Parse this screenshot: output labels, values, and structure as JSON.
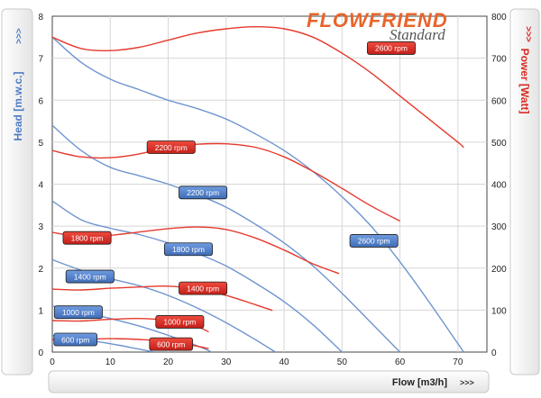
{
  "header": {
    "brand_main": "FLOWFRIEND",
    "brand_sub": "Standard"
  },
  "left_tab": {
    "label": "Head [m.w.c.]",
    "arrows": ">>>"
  },
  "right_tab": {
    "label": "Power [Watt]",
    "arrows": ">>>"
  },
  "bottom_tab": {
    "label": "Flow [m3/h]",
    "arrows": ">>>"
  },
  "colors": {
    "head": "#6f95cf",
    "power": "#e5392d",
    "label_head_bg": "#4f7cc4",
    "label_power_bg": "#d82b22"
  },
  "chart_data": {
    "type": "line",
    "xlabel": "Flow [m3/h]",
    "ylabel": "Head [m.w.c.]",
    "y2label": "Power [Watt]",
    "xlim": [
      0,
      75
    ],
    "ylim": [
      0,
      8
    ],
    "y2lim": [
      0,
      800
    ],
    "x_ticks": [
      0,
      10,
      20,
      30,
      40,
      50,
      60,
      70
    ],
    "y_ticks": [
      0,
      1,
      2,
      3,
      4,
      5,
      6,
      7,
      8
    ],
    "y2_ticks": [
      0,
      100,
      200,
      300,
      400,
      500,
      600,
      700,
      800
    ],
    "grid": true,
    "head_curves": [
      {
        "label": "600 rpm",
        "x": [
          0,
          5,
          10,
          15,
          17.5
        ],
        "y": [
          0.4,
          0.3,
          0.2,
          0.07,
          0
        ]
      },
      {
        "label": "1000 rpm",
        "x": [
          0,
          5,
          10,
          15,
          20,
          25,
          27.5
        ],
        "y": [
          1.1,
          0.96,
          0.8,
          0.62,
          0.4,
          0.15,
          0
        ]
      },
      {
        "label": "1400 rpm",
        "x": [
          0,
          5,
          10,
          15,
          20,
          25,
          30,
          35,
          38.5
        ],
        "y": [
          2.2,
          1.95,
          1.75,
          1.58,
          1.35,
          1.05,
          0.7,
          0.3,
          0
        ]
      },
      {
        "label": "1800 rpm",
        "x": [
          0,
          5,
          10,
          15,
          20,
          25,
          30,
          35,
          40,
          45,
          50
        ],
        "y": [
          3.6,
          3.15,
          2.95,
          2.8,
          2.6,
          2.35,
          2.05,
          1.65,
          1.2,
          0.65,
          0
        ]
      },
      {
        "label": "2200 rpm",
        "x": [
          0,
          5,
          10,
          15,
          20,
          25,
          30,
          35,
          40,
          45,
          50,
          55,
          60
        ],
        "y": [
          5.4,
          4.8,
          4.4,
          4.2,
          4.0,
          3.75,
          3.45,
          3.05,
          2.6,
          2.05,
          1.4,
          0.7,
          0
        ]
      },
      {
        "label": "2600 rpm",
        "x": [
          0,
          5,
          10,
          15,
          20,
          25,
          30,
          35,
          40,
          45,
          50,
          55,
          60,
          65,
          70,
          71
        ],
        "y": [
          7.5,
          6.9,
          6.5,
          6.25,
          6.0,
          5.8,
          5.55,
          5.2,
          4.8,
          4.3,
          3.7,
          3.0,
          2.15,
          1.2,
          0.2,
          0
        ]
      }
    ],
    "power_curves": [
      {
        "label": "600 rpm",
        "x": [
          0,
          5,
          10,
          15,
          20,
          25,
          27
        ],
        "y": [
          30,
          30,
          32,
          30,
          25,
          14,
          8
        ]
      },
      {
        "label": "1000 rpm",
        "x": [
          0,
          5,
          10,
          15,
          20,
          25,
          27
        ],
        "y": [
          75,
          74,
          78,
          80,
          75,
          60,
          48
        ]
      },
      {
        "label": "1400 rpm",
        "x": [
          0,
          5,
          10,
          15,
          20,
          25,
          30,
          35,
          38
        ],
        "y": [
          150,
          148,
          152,
          155,
          157,
          150,
          135,
          113,
          99
        ]
      },
      {
        "label": "1800 rpm",
        "x": [
          0,
          5,
          10,
          15,
          20,
          25,
          30,
          35,
          40,
          45,
          49.5
        ],
        "y": [
          285,
          275,
          278,
          286,
          294,
          298,
          292,
          272,
          243,
          210,
          187
        ]
      },
      {
        "label": "2200 rpm",
        "x": [
          0,
          5,
          10,
          15,
          20,
          25,
          30,
          35,
          40,
          45,
          50,
          55,
          60
        ],
        "y": [
          480,
          465,
          463,
          472,
          488,
          495,
          496,
          488,
          465,
          430,
          390,
          348,
          312
        ]
      },
      {
        "label": "2600 rpm",
        "x": [
          0,
          5,
          10,
          15,
          20,
          25,
          30,
          35,
          40,
          45,
          50,
          55,
          60,
          65,
          70,
          71
        ],
        "y": [
          750,
          723,
          718,
          726,
          743,
          760,
          770,
          775,
          770,
          750,
          712,
          665,
          610,
          555,
          500,
          487
        ]
      }
    ],
    "head_labels": [
      {
        "text": "600 rpm",
        "x": 4,
        "y": 0.3
      },
      {
        "text": "1000 rpm",
        "x": 4.5,
        "y": 0.95
      },
      {
        "text": "1400 rpm",
        "x": 6.5,
        "y": 1.8
      },
      {
        "text": "1800 rpm",
        "x": 23.5,
        "y": 2.45
      },
      {
        "text": "2200 rpm",
        "x": 26,
        "y": 3.8
      },
      {
        "text": "2600 rpm",
        "x": 55.5,
        "y": 2.65
      }
    ],
    "power_labels": [
      {
        "text": "600 rpm",
        "x": 20.5,
        "y": 19
      },
      {
        "text": "1000 rpm",
        "x": 22,
        "y": 72
      },
      {
        "text": "1400 rpm",
        "x": 26,
        "y": 152
      },
      {
        "text": "1800 rpm",
        "x": 6,
        "y": 272
      },
      {
        "text": "2200 rpm",
        "x": 20.5,
        "y": 488
      },
      {
        "text": "2600 rpm",
        "x": 58.5,
        "y": 724
      }
    ]
  }
}
